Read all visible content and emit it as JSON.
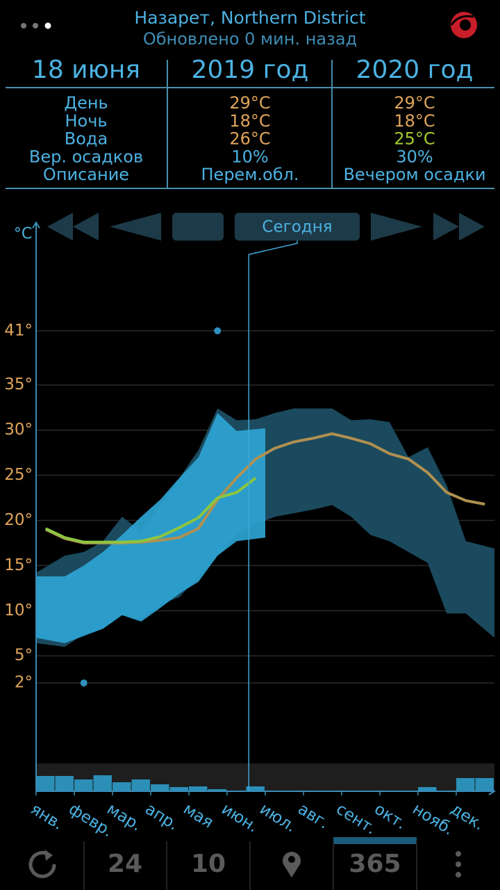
{
  "header": {
    "location": "Назарет, Northern District",
    "updated": "Обновлено 0 мин. назад"
  },
  "table": {
    "columns": [
      "18 июня",
      "2019 год",
      "2020 год"
    ],
    "rows": [
      [
        "День",
        "29°C",
        "29°C"
      ],
      [
        "Ночь",
        "18°C",
        "18°C"
      ],
      [
        "Вода",
        "26°C",
        "25°C"
      ],
      [
        "Вер. осадков",
        "10%",
        "30%"
      ],
      [
        "Описание",
        "Перем.обл.",
        "Вечером осадки"
      ]
    ]
  },
  "nav": {
    "today": "Сегодня"
  },
  "chart_data": {
    "type": "band",
    "unit": "°C",
    "categories": [
      "янв.",
      null,
      "февр.",
      null,
      "мар.",
      null,
      "апр.",
      null,
      "мая",
      null,
      "июн.",
      null,
      "июл.",
      null,
      "авг.",
      null,
      "сент.",
      null,
      "окт.",
      null,
      "нояб.",
      null,
      "дек.",
      null
    ],
    "ylim": [
      -10,
      53
    ],
    "yticks": [
      {
        "value": 2,
        "label": "2°"
      },
      {
        "value": 5,
        "label": "5°"
      },
      {
        "value": 10,
        "label": "10°"
      },
      {
        "value": 15,
        "label": "15°"
      },
      {
        "value": 20,
        "label": "20°"
      },
      {
        "value": 25,
        "label": "25°"
      },
      {
        "value": 30,
        "label": "30°"
      },
      {
        "value": 35,
        "label": "35°"
      },
      {
        "value": 41,
        "label": "41°"
      }
    ],
    "grid": true,
    "bands": [
      {
        "color": "#1b4a5e",
        "max": [
          14.2,
          16.1,
          16.5,
          17.7,
          20.4,
          18.8,
          21.6,
          24.7,
          27.8,
          32.4,
          31.1,
          31.2,
          31.9,
          32.4,
          32.4,
          32.4,
          31.1,
          31.2,
          30.9,
          27,
          28.1,
          23.9,
          17.7,
          16.9
        ],
        "min": [
          6.4,
          6,
          7.4,
          8,
          9.5,
          9.1,
          10.7,
          11.5,
          13.8,
          16.1,
          18.4,
          19.6,
          20.4,
          20.8,
          21.2,
          21.7,
          20.4,
          18.4,
          17.7,
          16.5,
          15.3,
          9.7,
          9.7,
          7
        ]
      },
      {
        "color": "#2ea4d4",
        "max": [
          13.8,
          13.8,
          15,
          16.5,
          18.4,
          20.4,
          22.3,
          24.7,
          27,
          31.9,
          29.9,
          30.2,
          null,
          null,
          null,
          null,
          null,
          null,
          null,
          null,
          null,
          null,
          null,
          null
        ],
        "min": [
          7,
          6.4,
          7.2,
          8,
          9.5,
          8.8,
          10.3,
          11.9,
          13.2,
          16.1,
          17.7,
          18.1,
          null,
          null,
          null,
          null,
          null,
          null,
          null,
          null,
          null,
          null,
          null,
          null
        ]
      }
    ],
    "series": [
      {
        "color": "#b09050",
        "values": [
          19,
          18,
          17.5,
          17.5,
          17.5,
          17.6,
          17.8,
          18.1,
          19.1,
          22.3,
          24.7,
          26.8,
          28,
          28.7,
          29.1,
          29.6,
          29.1,
          28.5,
          27.4,
          26.8,
          25.3,
          23.1,
          22.2,
          21.8
        ]
      },
      {
        "color": "#8cc63f",
        "values": [
          19.1,
          18.1,
          17.6,
          17.6,
          17.6,
          17.7,
          18.2,
          19.2,
          20.3,
          22.5,
          23.1,
          24.7,
          null,
          null,
          null,
          null,
          null,
          null,
          null,
          null,
          null,
          null,
          null,
          null
        ]
      }
    ],
    "extremes": [
      {
        "value": 41,
        "index": 9
      },
      {
        "value": 2,
        "index": 2
      }
    ],
    "extremes_color": "#2e90c0",
    "precipitation": {
      "color": "#2b8fb8",
      "lim": [
        0,
        40
      ],
      "values": [
        22,
        22,
        17,
        23,
        13,
        17,
        10,
        6,
        7,
        3,
        0,
        7,
        0,
        0,
        0,
        0,
        0,
        0,
        0,
        1,
        6,
        0,
        19,
        19
      ]
    },
    "today_index": 11
  },
  "bottom": {
    "hours": "24",
    "days": "10",
    "year": "365"
  }
}
